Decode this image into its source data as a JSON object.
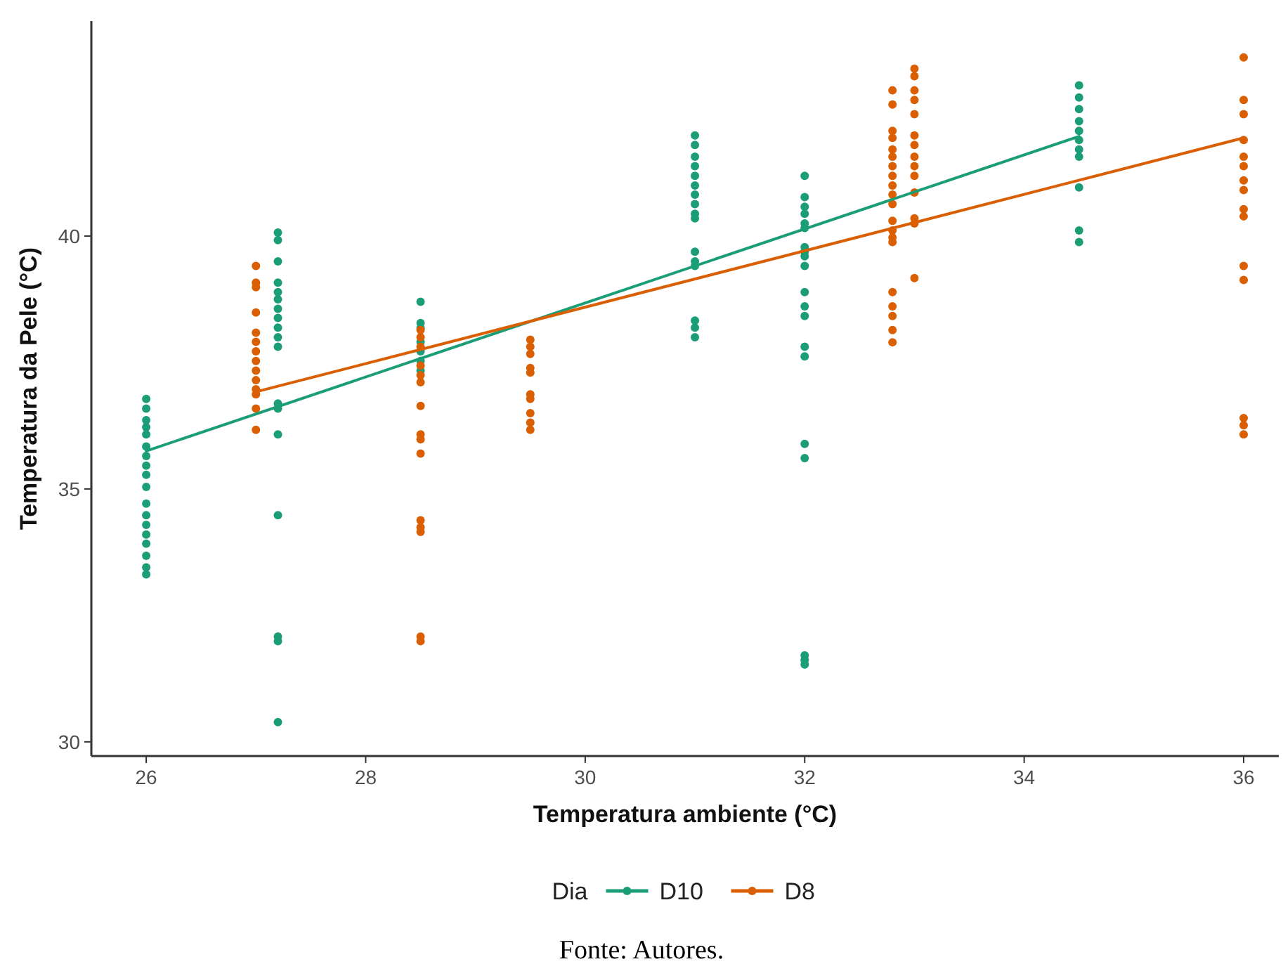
{
  "chart_data": {
    "type": "scatter",
    "xlabel": "Temperatura ambiente (°C)",
    "ylabel": "Temperatura da Pele (°C)",
    "legend_title": "Dia",
    "legend": "bottom",
    "grid": false,
    "marker": "circle",
    "xlim": [
      25.5,
      36.32
    ],
    "ylim": [
      29.72,
      44.25
    ],
    "xticks": [
      26,
      28,
      30,
      32,
      34,
      36
    ],
    "yticks": [
      30,
      35,
      40
    ],
    "annotations": [
      "Fonte: Autores."
    ],
    "series": [
      {
        "name": "D10",
        "color": "#1b9e77",
        "x": [
          26,
          26,
          26,
          26,
          26,
          26,
          26,
          26,
          26,
          26,
          26,
          26,
          26,
          26,
          26,
          26,
          26,
          26,
          27.2,
          27.2,
          27.2,
          27.2,
          27.2,
          27.2,
          27.2,
          27.2,
          27.2,
          27.2,
          27.2,
          27.2,
          27.2,
          27.2,
          27.2,
          27.2,
          27.2,
          27.2,
          28.5,
          28.5,
          28.5,
          28.5,
          28.5,
          28.5,
          28.5,
          31,
          31,
          31,
          31,
          31,
          31,
          31,
          31,
          31,
          31,
          31,
          31,
          31,
          31,
          31,
          31,
          32,
          32,
          32,
          32,
          32,
          32,
          32,
          32,
          32,
          32,
          32,
          32,
          32,
          32,
          32,
          32,
          32,
          32,
          32,
          32,
          34.5,
          34.5,
          34.5,
          34.5,
          34.5,
          34.5,
          34.5,
          34.5,
          34.5,
          34.5,
          34.5
        ],
        "values": [
          36.78,
          36.59,
          36.36,
          36.22,
          36.08,
          35.84,
          35.65,
          35.46,
          35.28,
          35.04,
          34.71,
          34.48,
          34.29,
          34.1,
          33.92,
          33.68,
          33.45,
          33.31,
          40.07,
          39.92,
          39.5,
          39.08,
          38.89,
          38.75,
          38.56,
          38.38,
          38.19,
          38.0,
          37.81,
          36.69,
          36.59,
          36.08,
          34.48,
          32.08,
          31.99,
          30.39,
          38.7,
          38.28,
          38.18,
          37.91,
          37.72,
          37.53,
          37.34,
          41.99,
          41.8,
          41.57,
          41.38,
          41.19,
          41.0,
          40.82,
          40.63,
          40.44,
          40.35,
          39.69,
          39.5,
          39.41,
          38.33,
          38.19,
          38.0,
          41.19,
          40.77,
          40.58,
          40.44,
          40.25,
          40.16,
          39.78,
          39.69,
          39.6,
          39.41,
          38.89,
          38.61,
          38.42,
          37.81,
          37.62,
          35.89,
          35.61,
          31.71,
          31.62,
          31.53,
          42.98,
          42.74,
          42.51,
          42.27,
          42.08,
          41.9,
          41.71,
          41.57,
          40.96,
          40.11,
          39.88
        ]
      },
      {
        "name": "D8",
        "color": "#d95f02",
        "x": [
          27,
          27,
          27,
          27,
          27,
          27,
          27,
          27,
          27,
          27,
          27,
          27,
          27,
          27,
          28.5,
          28.5,
          28.5,
          28.5,
          28.5,
          28.5,
          28.5,
          28.5,
          28.5,
          28.5,
          28.5,
          28.5,
          28.5,
          28.5,
          28.5,
          29.5,
          29.5,
          29.5,
          29.5,
          29.5,
          29.5,
          29.5,
          29.5,
          29.5,
          29.5,
          32.8,
          32.8,
          32.8,
          32.8,
          32.8,
          32.8,
          32.8,
          32.8,
          32.8,
          32.8,
          32.8,
          32.8,
          32.8,
          32.8,
          32.8,
          32.8,
          32.8,
          32.8,
          32.8,
          32.8,
          33,
          33,
          33,
          33,
          33,
          33,
          33,
          33,
          33,
          33,
          33,
          33,
          33,
          33,
          36,
          36,
          36,
          36,
          36,
          36,
          36,
          36,
          36,
          36,
          36,
          36,
          36,
          36,
          36
        ],
        "values": [
          39.41,
          39.08,
          38.99,
          38.49,
          38.09,
          37.91,
          37.72,
          37.53,
          37.34,
          37.15,
          36.97,
          36.87,
          36.59,
          36.17,
          38.14,
          38.0,
          37.81,
          37.44,
          37.25,
          37.11,
          36.64,
          36.08,
          35.98,
          35.7,
          34.38,
          34.24,
          34.15,
          32.08,
          31.99,
          37.95,
          37.81,
          37.67,
          37.39,
          37.3,
          36.87,
          36.78,
          36.5,
          36.31,
          36.17,
          42.88,
          42.6,
          42.08,
          41.94,
          41.71,
          41.57,
          41.38,
          41.19,
          41.0,
          40.82,
          40.63,
          40.3,
          40.11,
          39.97,
          39.88,
          38.89,
          38.61,
          38.42,
          38.14,
          37.9,
          43.31,
          43.16,
          42.88,
          42.69,
          42.41,
          41.99,
          41.8,
          41.57,
          41.38,
          41.19,
          40.86,
          40.35,
          40.25,
          39.17,
          43.53,
          42.69,
          42.41,
          41.9,
          41.57,
          41.38,
          41.1,
          40.91,
          40.53,
          40.39,
          39.41,
          39.13,
          36.4,
          36.26,
          36.08
        ]
      },
      {
        "type": "line",
        "marker": "none",
        "color": "#1b9e77",
        "x": [
          26,
          34.5
        ],
        "values": [
          35.75,
          41.97
        ]
      },
      {
        "type": "line",
        "marker": "none",
        "color": "#d95f02",
        "x": [
          27,
          36
        ],
        "values": [
          36.92,
          41.94
        ]
      }
    ]
  }
}
